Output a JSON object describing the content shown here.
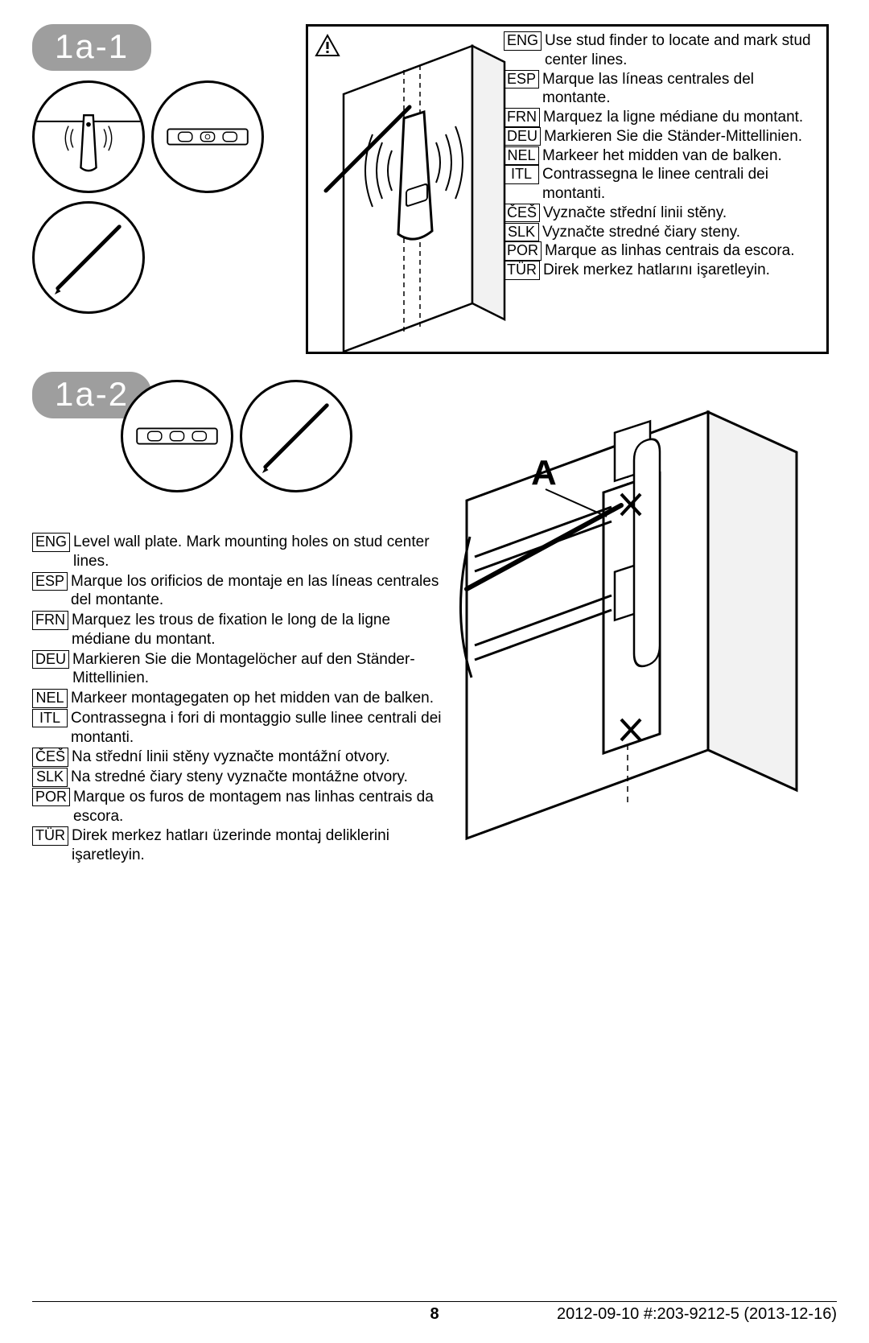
{
  "step1": {
    "label": "1a-1",
    "instructions": [
      {
        "code": "ENG",
        "text": "Use stud finder to locate and mark stud center lines."
      },
      {
        "code": "ESP",
        "text": "Marque las líneas centrales del montante."
      },
      {
        "code": "FRN",
        "text": "Marquez la ligne médiane du montant."
      },
      {
        "code": "DEU",
        "text": "Markieren Sie die Ständer-Mittellinien."
      },
      {
        "code": "NEL",
        "text": "Markeer het midden van de balken."
      },
      {
        "code": "ITL",
        "text": "Contrassegna le linee centrali dei montanti."
      },
      {
        "code": "ČEŠ",
        "text": "Vyznačte střední linii stěny."
      },
      {
        "code": "SLK",
        "text": "Vyznačte stredné čiary steny."
      },
      {
        "code": "POR",
        "text": "Marque as linhas centrais da escora."
      },
      {
        "code": "TÜR",
        "text": "Direk merkez hatlarını işaretleyin."
      }
    ]
  },
  "step2": {
    "label": "1a-2",
    "marker": "A",
    "instructions": [
      {
        "code": "ENG",
        "text": "Level wall plate. Mark mounting holes on stud center lines."
      },
      {
        "code": "ESP",
        "text": "Marque los orificios de montaje en las líneas centrales del montante."
      },
      {
        "code": "FRN",
        "text": "Marquez les trous de fixation le long de la ligne médiane du montant."
      },
      {
        "code": "DEU",
        "text": "Markieren Sie die Montagelöcher auf den Ständer-Mittellinien."
      },
      {
        "code": "NEL",
        "text": "Markeer montagegaten op het midden van de balken."
      },
      {
        "code": "ITL",
        "text": "Contrassegna i fori di montaggio sulle linee centrali dei montanti."
      },
      {
        "code": "ČEŠ",
        "text": "Na střední linii stěny vyznačte montážní otvory."
      },
      {
        "code": "SLK",
        "text": "Na stredné čiary steny vyznačte montážne otvory."
      },
      {
        "code": "POR",
        "text": "Marque os furos de montagem nas linhas centrais da escora."
      },
      {
        "code": "TÜR",
        "text": "Direk merkez hatları üzerinde montaj deliklerini işaretleyin."
      }
    ]
  },
  "footer": {
    "page": "8",
    "meta": "2012-09-10   #:203-9212-5   (2013-12-16)"
  },
  "colors": {
    "pill_bg": "#9e9e9e",
    "stroke": "#000000",
    "fill_light": "#f2f2f2"
  }
}
